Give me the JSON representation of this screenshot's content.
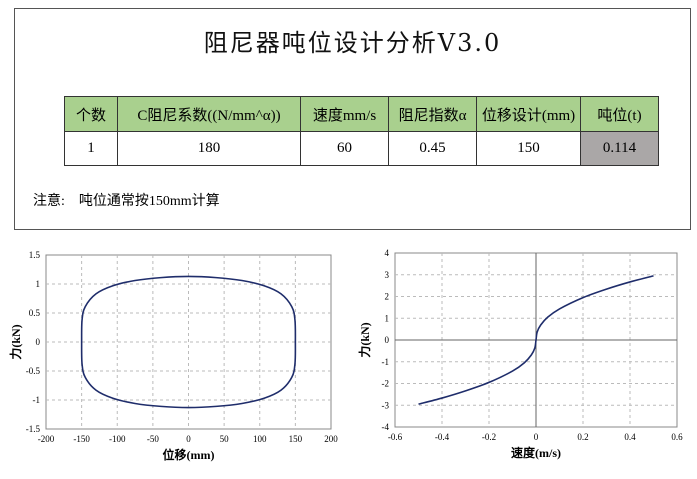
{
  "title": "阻尼器吨位设计分析V3.0",
  "table": {
    "headers": [
      "个数",
      "C阻尼系数((N/mm^α))",
      "速度mm/s",
      "阻尼指数α",
      "位移设计(mm)",
      "吨位(t)"
    ],
    "row": [
      "1",
      "180",
      "60",
      "0.45",
      "150",
      "0.114"
    ]
  },
  "note": {
    "label": "注意:",
    "text": "吨位通常按150mm计算"
  },
  "colors": {
    "header_bg": "#a9d08e",
    "result_bg": "#aaa7a7",
    "curve": "#1f2d6b"
  },
  "chart_data": [
    {
      "type": "line",
      "xlabel": "位移(mm)",
      "ylabel": "力(kN)",
      "xlim": [
        -200,
        200
      ],
      "ylim": [
        -1.5,
        1.5
      ],
      "xticks": [
        -200,
        -150,
        -100,
        -50,
        0,
        50,
        100,
        150,
        200
      ],
      "yticks": [
        -1.5,
        -1,
        -0.5,
        0,
        0.5,
        1,
        1.5
      ],
      "grid": true,
      "x": [
        -150,
        -149.4,
        -144.9,
        -129.9,
        -106.1,
        -75,
        -38.8,
        0,
        38.8,
        75,
        106.1,
        129.9,
        144.9,
        149.4,
        150,
        149.4,
        144.9,
        129.9,
        106.1,
        75,
        38.8,
        0,
        -38.8,
        -75,
        -106.1,
        -129.9,
        -144.9,
        -149.4,
        -150
      ],
      "y": [
        0,
        0.38,
        0.61,
        0.83,
        0.97,
        1.06,
        1.11,
        1.13,
        1.11,
        1.06,
        0.97,
        0.83,
        0.61,
        0.38,
        0,
        -0.38,
        -0.61,
        -0.83,
        -0.97,
        -1.06,
        -1.11,
        -1.13,
        -1.11,
        -1.06,
        -0.97,
        -0.83,
        -0.61,
        -0.38,
        0
      ]
    },
    {
      "type": "line",
      "xlabel": "速度(m/s)",
      "ylabel": "力(kN)",
      "xlim": [
        -0.6,
        0.6
      ],
      "ylim": [
        -4,
        4
      ],
      "xticks": [
        -0.6,
        -0.4,
        -0.2,
        0,
        0.2,
        0.4,
        0.6
      ],
      "yticks": [
        -4,
        -3,
        -2,
        -1,
        0,
        1,
        2,
        3,
        4
      ],
      "grid": true,
      "x": [
        -0.5,
        -0.4,
        -0.3,
        -0.2,
        -0.1,
        -0.05,
        -0.02,
        -0.005,
        0,
        0.005,
        0.02,
        0.05,
        0.1,
        0.2,
        0.3,
        0.4,
        0.5
      ],
      "y": [
        -2.95,
        -2.67,
        -2.34,
        -1.95,
        -1.43,
        -1.05,
        -0.69,
        -0.37,
        0,
        0.37,
        0.69,
        1.05,
        1.43,
        1.95,
        2.34,
        2.67,
        2.95
      ]
    }
  ]
}
